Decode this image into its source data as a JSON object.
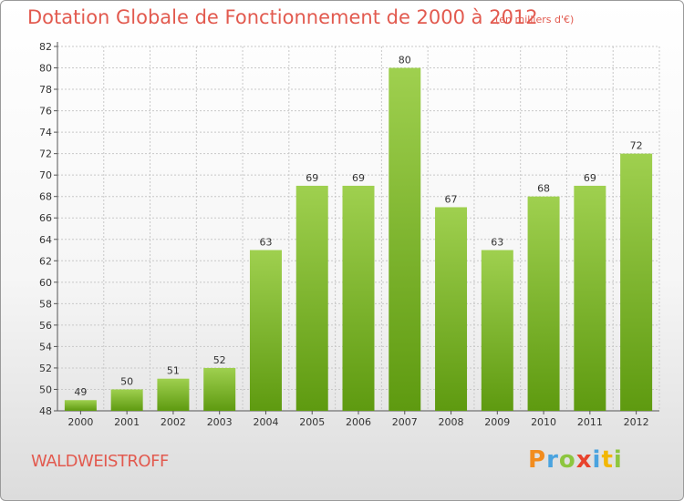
{
  "header": {
    "title": "Dotation Globale de Fonctionnement de 2000 à 2012",
    "subtitle": "(en milliers d'€)"
  },
  "footer": {
    "commune": "WALDWEISTROFF",
    "logo_text": "Proxiti",
    "logo_letter_colors": [
      "#f28c1e",
      "#4aa3df",
      "#8dc63f",
      "#e8432d",
      "#4aa3df",
      "#f2b705",
      "#8dc63f"
    ]
  },
  "colors": {
    "title": "#e25a4f",
    "bar_top": "#9fd04f",
    "bar_bottom": "#5e9a10",
    "grid": "#c8c8c8"
  },
  "chart_data": {
    "type": "bar",
    "title": "Dotation Globale de Fonctionnement de 2000 à 2012",
    "subtitle": "(en milliers d'€)",
    "categories": [
      "2000",
      "2001",
      "2002",
      "2003",
      "2004",
      "2005",
      "2006",
      "2007",
      "2008",
      "2009",
      "2010",
      "2011",
      "2012"
    ],
    "values": [
      49,
      50,
      51,
      52,
      63,
      69,
      69,
      80,
      67,
      63,
      68,
      69,
      72
    ],
    "ylim": [
      48,
      82
    ],
    "yticks": [
      48,
      50,
      52,
      54,
      56,
      58,
      60,
      62,
      64,
      66,
      68,
      70,
      72,
      74,
      76,
      78,
      80,
      82
    ],
    "grid": true,
    "data_labels": true,
    "legend": "none"
  }
}
